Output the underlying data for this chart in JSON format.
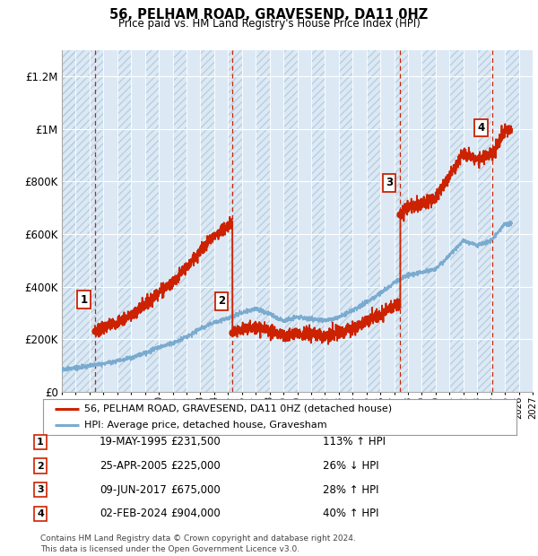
{
  "title": "56, PELHAM ROAD, GRAVESEND, DA11 0HZ",
  "subtitle": "Price paid vs. HM Land Registry's House Price Index (HPI)",
  "xlim_start": 1993,
  "xlim_end": 2027,
  "ylim_min": 0,
  "ylim_max": 1300000,
  "yticks": [
    0,
    200000,
    400000,
    600000,
    800000,
    1000000,
    1200000
  ],
  "ytick_labels": [
    "£0",
    "£200K",
    "£400K",
    "£600K",
    "£800K",
    "£1M",
    "£1.2M"
  ],
  "bg_color": "#dce9f5",
  "hatch_left_color": "#c8d8e8",
  "grid_color": "#ffffff",
  "sale_line_color": "#cc2200",
  "hpi_line_color": "#7aabcf",
  "sale_marker_color": "#cc2200",
  "purchases": [
    {
      "year_dec": 1995.38,
      "price": 231500,
      "label": "1"
    },
    {
      "year_dec": 2005.32,
      "price": 225000,
      "label": "2"
    },
    {
      "year_dec": 2017.44,
      "price": 675000,
      "label": "3"
    },
    {
      "year_dec": 2024.09,
      "price": 904000,
      "label": "4"
    }
  ],
  "table_rows": [
    {
      "num": "1",
      "date": "19-MAY-1995",
      "price": "£231,500",
      "hpi": "113% ↑ HPI"
    },
    {
      "num": "2",
      "date": "25-APR-2005",
      "price": "£225,000",
      "hpi": "26% ↓ HPI"
    },
    {
      "num": "3",
      "date": "09-JUN-2017",
      "price": "£675,000",
      "hpi": "28% ↑ HPI"
    },
    {
      "num": "4",
      "date": "02-FEB-2024",
      "price": "£904,000",
      "hpi": "40% ↑ HPI"
    }
  ],
  "footer": "Contains HM Land Registry data © Crown copyright and database right 2024.\nThis data is licensed under the Open Government Licence v3.0.",
  "legend_sale": "56, PELHAM ROAD, GRAVESEND, DA11 0HZ (detached house)",
  "legend_hpi": "HPI: Average price, detached house, Gravesham"
}
